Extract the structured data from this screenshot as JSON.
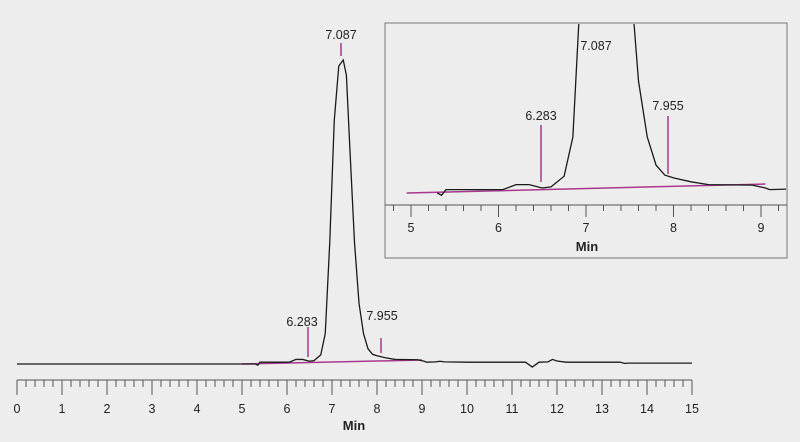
{
  "chart_data": [
    {
      "type": "line",
      "title": "",
      "xlabel": "Min",
      "ylabel": "",
      "xlim": [
        0,
        15
      ],
      "xticks": [
        "0",
        "1",
        "2",
        "3",
        "4",
        "5",
        "6",
        "7",
        "8",
        "9",
        "10",
        "11",
        "12",
        "13",
        "14",
        "15"
      ],
      "minor_ticks_per_unit": 5,
      "grid": false,
      "peaks": [
        {
          "label": "6.283"
        },
        {
          "label": "7.087"
        },
        {
          "label": "7.955"
        }
      ],
      "integration_baseline": {
        "from": 5.0,
        "to": 9.0
      },
      "series": [
        {
          "x": [
            0,
            5.3,
            5.35,
            5.4,
            6.05,
            6.2,
            6.35,
            6.5,
            6.6,
            6.75,
            6.85,
            6.95,
            7.05,
            7.15,
            7.25,
            7.32,
            7.4,
            7.5,
            7.6,
            7.7,
            7.8,
            7.9,
            8.0,
            8.2,
            8.4,
            8.9,
            9.05,
            9.1,
            9.3,
            9.4,
            9.5,
            10,
            11.3,
            11.45,
            11.6,
            11.8,
            11.9,
            12.0,
            12.2,
            13.4,
            13.5,
            13.6,
            15
          ],
          "y": [
            0,
            0,
            -0.4,
            0.6,
            0.6,
            1.5,
            1.5,
            0.9,
            1.1,
            3,
            10,
            40,
            80,
            98,
            100,
            95,
            70,
            40,
            20,
            10,
            5,
            3.2,
            2.7,
            2.0,
            1.5,
            1.4,
            0.9,
            0.6,
            0.7,
            0.9,
            0.7,
            0.6,
            0.6,
            -1.0,
            0.6,
            0.7,
            1.5,
            1.0,
            0.6,
            0.6,
            0.2,
            0.3,
            0.3
          ]
        }
      ],
      "colors": {
        "trace": "#1a1a1a",
        "annotation": "#a8388f",
        "background": "#ededed"
      }
    },
    {
      "type": "line",
      "title": "",
      "xlabel": "Min",
      "xlim": [
        4.8,
        9.3
      ],
      "xticks": [
        "5",
        "6",
        "7",
        "8",
        "9"
      ],
      "minor_ticks_per_unit": 5,
      "peaks": [
        {
          "label": "6.283"
        },
        {
          "label": "7.087"
        },
        {
          "label": "7.955"
        }
      ]
    }
  ]
}
